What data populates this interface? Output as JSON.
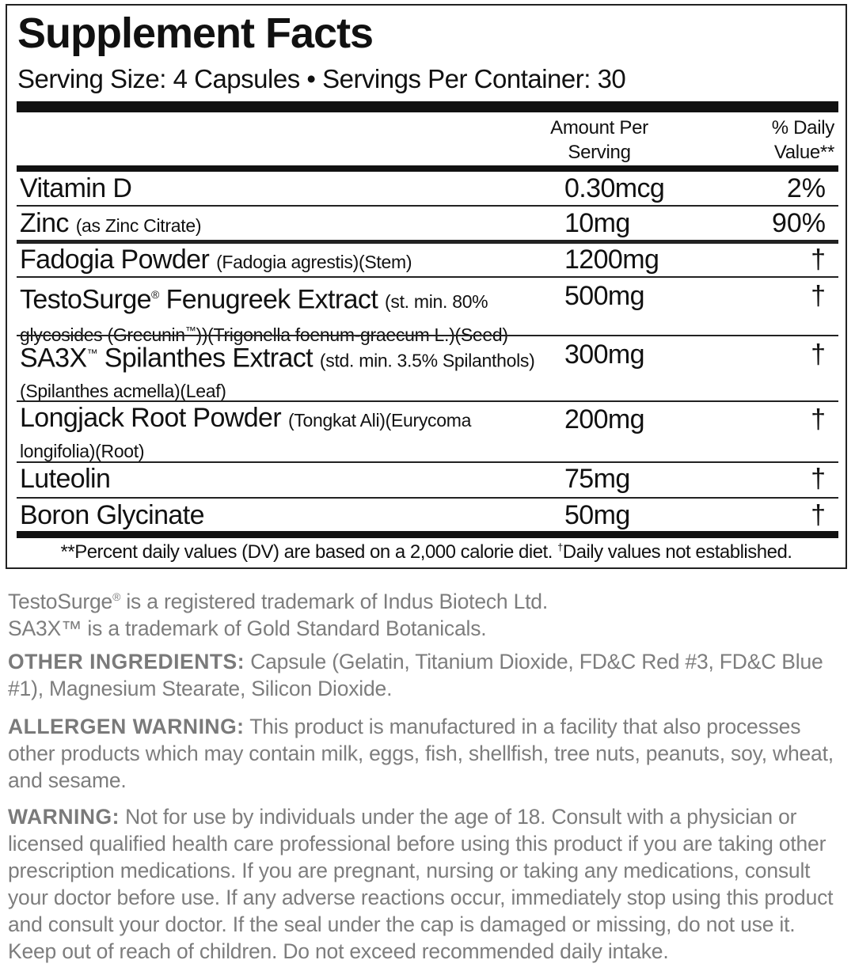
{
  "label": {
    "title": "Supplement Facts",
    "serving_line": "Serving Size: 4 Capsules • Servings Per Container: 30",
    "header": {
      "amount_line1": "Amount Per",
      "amount_line2": "Serving",
      "dv_line1": "% Daily",
      "dv_line2": "Value**"
    },
    "rows": [
      {
        "name": "Vitamin D",
        "detail": "",
        "amount": "0.30mcg",
        "dv": "2%"
      },
      {
        "name": "Zinc",
        "detail": "(as Zinc Citrate)",
        "amount": "10mg",
        "dv": "90%"
      },
      {
        "name": "Fadogia Powder",
        "detail": "(Fadogia agrestis)(Stem)",
        "amount": "1200mg",
        "dv": "†"
      },
      {
        "name": "TestoSurge",
        "mark": "®",
        "name2": " Fenugreek Extract",
        "detail": "(st. min. 80% glycosides (Grecunin",
        "detail_mark": "™",
        "detail2": "))(Trigonella foenum-graecum L.)(Seed)",
        "amount": "500mg",
        "dv": "†"
      },
      {
        "name": "SA3X",
        "mark": "™",
        "name2": " Spilanthes Extract",
        "detail": "(std. min. 3.5% Spilanthols)(Spilanthes acmella)(Leaf)",
        "amount": "300mg",
        "dv": "†"
      },
      {
        "name": "Longjack Root Powder",
        "detail": "(Tongkat Ali)(Eurycoma longifolia)(Root)",
        "amount": "200mg",
        "dv": "†"
      },
      {
        "name": "Luteolin",
        "detail": "",
        "amount": "75mg",
        "dv": "†"
      },
      {
        "name": "Boron Glycinate",
        "detail": "",
        "amount": "50mg",
        "dv": "†"
      }
    ],
    "footnote": "**Percent daily values (DV) are based on a 2,000 calorie diet.",
    "footnote_mark": "†",
    "footnote2": "Daily values not established."
  },
  "notes": {
    "tm1_a": "TestoSurge",
    "tm1_mark": "®",
    "tm1_b": " is a registered trademark of Indus Biotech Ltd.",
    "tm2": "SA3X™ is a trademark of Gold Standard Botanicals.",
    "other_label": "OTHER INGREDIENTS:",
    "other_text": " Capsule (Gelatin, Titanium Dioxide, FD&C Red #3, FD&C Blue #1), Magnesium Stearate, Silicon Dioxide.",
    "allergen_label": "ALLERGEN WARNING:",
    "allergen_text": " This product is manufactured in a facility that also processes other products which may contain milk, eggs, fish, shellfish, tree nuts, peanuts, soy, wheat, and sesame.",
    "warning_label": "WARNING:",
    "warning_text": " Not for use by individuals under the age of 18. Consult with a physician or licensed qualified health care professional before using this product if you are taking other prescription medications. If you are pregnant, nursing or taking any medications, consult your doctor before use. If any adverse reactions occur, immediately stop using this product and consult your doctor. If the seal under the cap is damaged or missing, do not use it. Keep out of reach of children. Do not exceed recommended daily intake."
  }
}
